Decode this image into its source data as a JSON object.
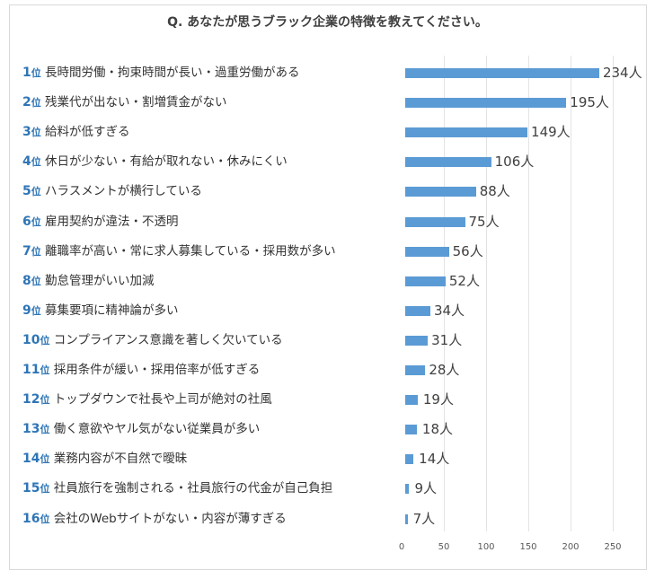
{
  "chart_data": {
    "type": "bar",
    "orientation": "horizontal",
    "title": "Q. あなたが思うブラック企業の特徴を教えてください。",
    "rank_suffix": "位",
    "unit": "人",
    "categories": [
      "長時間労働・拘束時間が長い・過重労働がある",
      "残業代が出ない・割増賃金がない",
      "給料が低すぎる",
      "休日が少ない・有給が取れない・休みにくい",
      "ハラスメントが横行している",
      "雇用契約が違法・不透明",
      "離職率が高い・常に求人募集している・採用数が多い",
      "勤怠管理がいい加減",
      "募集要項に精神論が多い",
      "コンプライアンス意識を著しく欠いている",
      "採用条件が緩い・採用倍率が低すぎる",
      "トップダウンで社長や上司が絶対の社風",
      "働く意欲やヤル気がない従業員が多い",
      "業務内容が不自然で曖昧",
      "社員旅行を強制される・社員旅行の代金が自己負担",
      "会社のWebサイトがない・内容が薄すぎる"
    ],
    "values": [
      234,
      195,
      149,
      106,
      88,
      75,
      56,
      52,
      34,
      31,
      28,
      19,
      18,
      14,
      9,
      7
    ],
    "xlim": [
      0,
      250
    ],
    "xticks": [
      0,
      50,
      100,
      150,
      200,
      250
    ],
    "grid": true,
    "bar_color": "#5b9bd5",
    "rank_color": "#2e75b6"
  }
}
